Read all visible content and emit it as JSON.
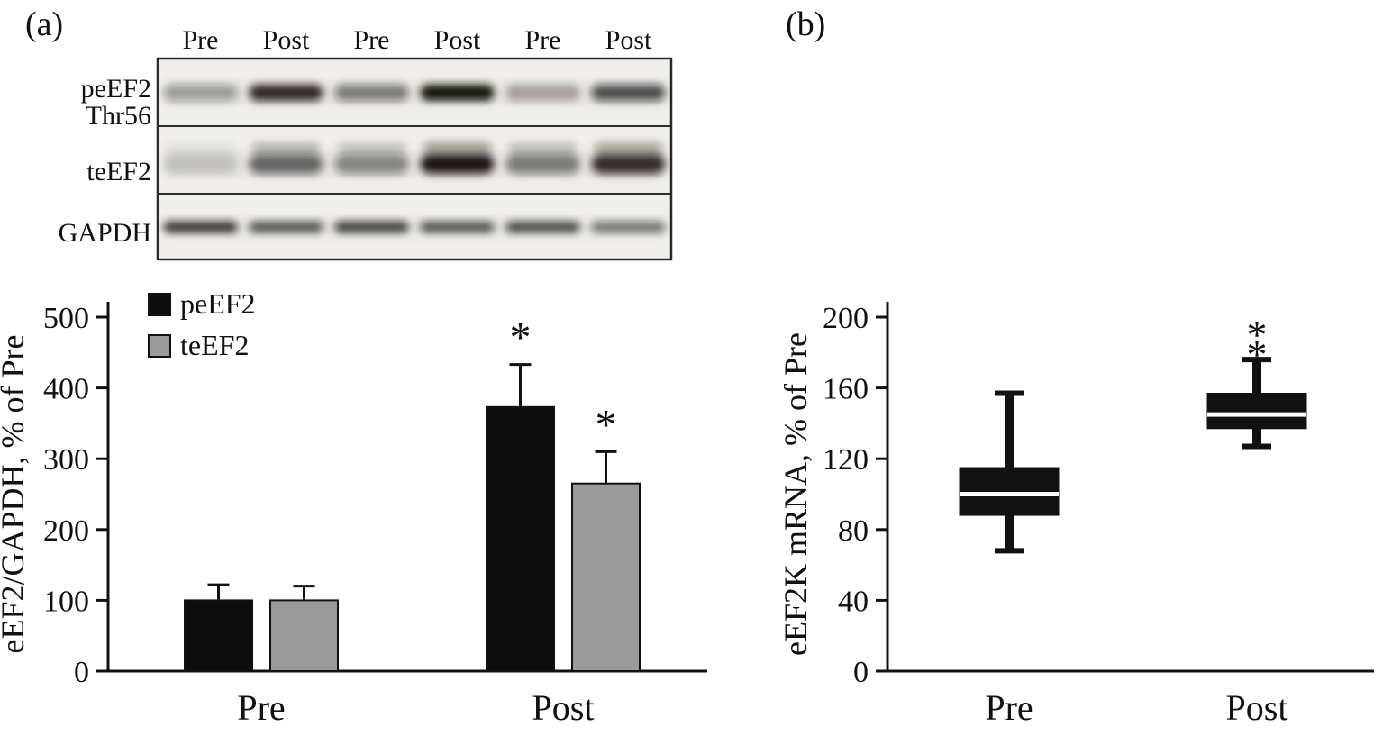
{
  "panels": {
    "a": {
      "label": "(a)"
    },
    "b": {
      "label": "(b)"
    }
  },
  "blot": {
    "lane_labels": [
      "Pre",
      "Post",
      "Pre",
      "Post",
      "Pre",
      "Post"
    ],
    "rows": [
      {
        "label_lines": [
          "peEF2",
          "Thr56"
        ],
        "band_intensities": [
          0.35,
          0.88,
          0.5,
          1.0,
          0.3,
          0.7
        ]
      },
      {
        "label_lines": [
          "teEF2"
        ],
        "band_intensities": [
          0.15,
          0.6,
          0.45,
          0.95,
          0.5,
          0.85
        ]
      },
      {
        "label_lines": [
          "GAPDH"
        ],
        "band_intensities": [
          0.85,
          0.7,
          0.8,
          0.7,
          0.75,
          0.55
        ]
      }
    ]
  },
  "colors": {
    "ink": "#111111",
    "bar_black": "#0d0d0d",
    "bar_gray": "#9a9a9a",
    "blot_bg": "#f1efec"
  },
  "chart_data": [
    {
      "type": "bar",
      "panel": "a",
      "title": "",
      "ylabel": "eEF2/GAPDH, % of Pre",
      "xlabel": "",
      "categories": [
        "Pre",
        "Post"
      ],
      "series": [
        {
          "name": "peEF2",
          "color": "#0d0d0d",
          "values": [
            100,
            373
          ],
          "errors_up": [
            22,
            60
          ],
          "significance": [
            "",
            "*"
          ]
        },
        {
          "name": "teEF2",
          "color": "#9a9a9a",
          "values": [
            100,
            265
          ],
          "errors_up": [
            20,
            45
          ],
          "significance": [
            "",
            "*"
          ]
        }
      ],
      "ylim": [
        0,
        500
      ],
      "yticks": [
        0,
        100,
        200,
        300,
        400,
        500
      ],
      "legend_position": "top-left",
      "grid": false
    },
    {
      "type": "box",
      "panel": "b",
      "title": "",
      "ylabel": "eEF2K mRNA, % of Pre",
      "xlabel": "",
      "categories": [
        "Pre",
        "Post"
      ],
      "boxes": [
        {
          "category": "Pre",
          "whisker_low": 68,
          "q1": 88,
          "median": 100,
          "q3": 115,
          "whisker_high": 157,
          "annotation": ""
        },
        {
          "category": "Post",
          "whisker_low": 127,
          "q1": 137,
          "median": 145,
          "q3": 157,
          "whisker_high": 176,
          "annotation": "**"
        }
      ],
      "ylim": [
        0,
        200
      ],
      "yticks": [
        0,
        40,
        80,
        120,
        160,
        200
      ],
      "grid": false
    }
  ]
}
